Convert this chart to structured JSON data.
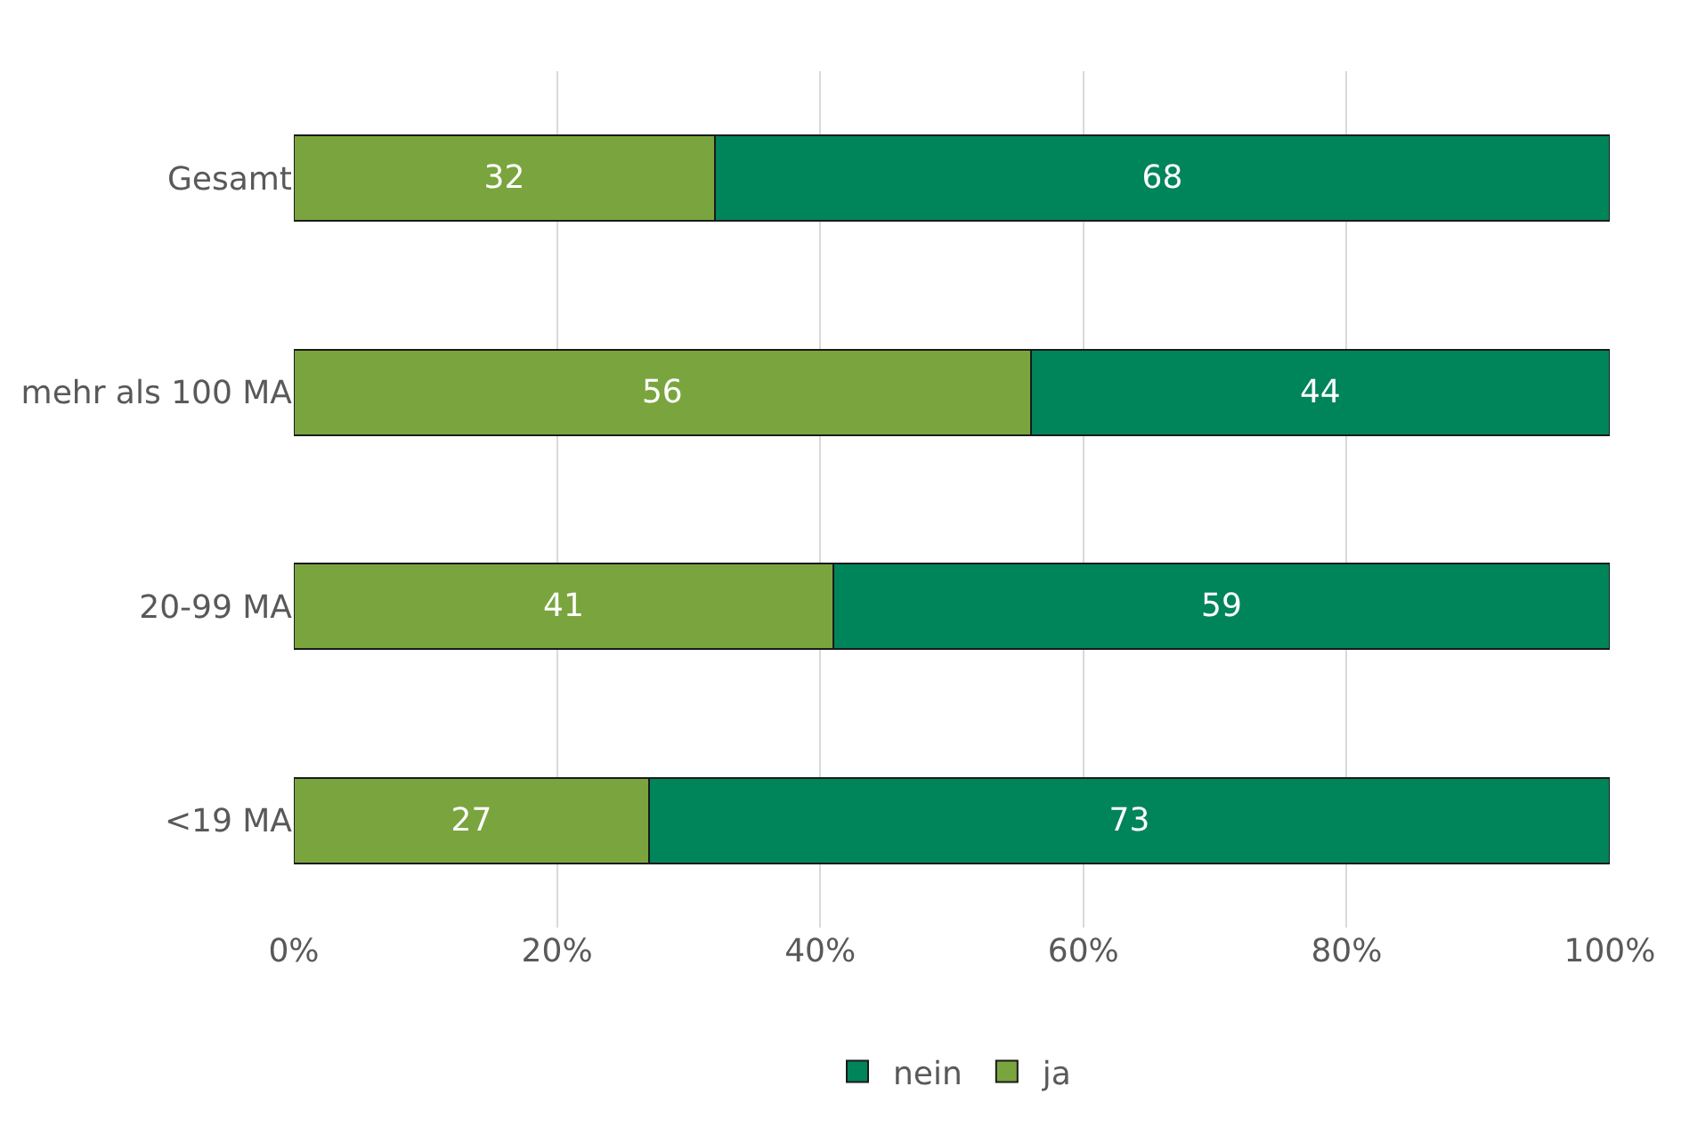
{
  "chart_data": {
    "type": "bar",
    "orientation": "horizontal",
    "stacked": true,
    "categories": [
      "Gesamt",
      "mehr als 100 MA",
      "20-99 MA",
      "<19 MA"
    ],
    "series": [
      {
        "name": "ja",
        "color": "#7aa53e",
        "values": [
          32,
          56,
          41,
          27
        ]
      },
      {
        "name": "nein",
        "color": "#00845a",
        "values": [
          68,
          44,
          59,
          73
        ]
      }
    ],
    "xlim": [
      0,
      100
    ],
    "xticks": [
      {
        "value": 0,
        "label": "0%"
      },
      {
        "value": 20,
        "label": "20%"
      },
      {
        "value": 40,
        "label": "40%"
      },
      {
        "value": 60,
        "label": "60%"
      },
      {
        "value": 80,
        "label": "80%"
      },
      {
        "value": 100,
        "label": "100%"
      }
    ],
    "grid": "x",
    "legend": "bottom",
    "data_labels": true
  }
}
